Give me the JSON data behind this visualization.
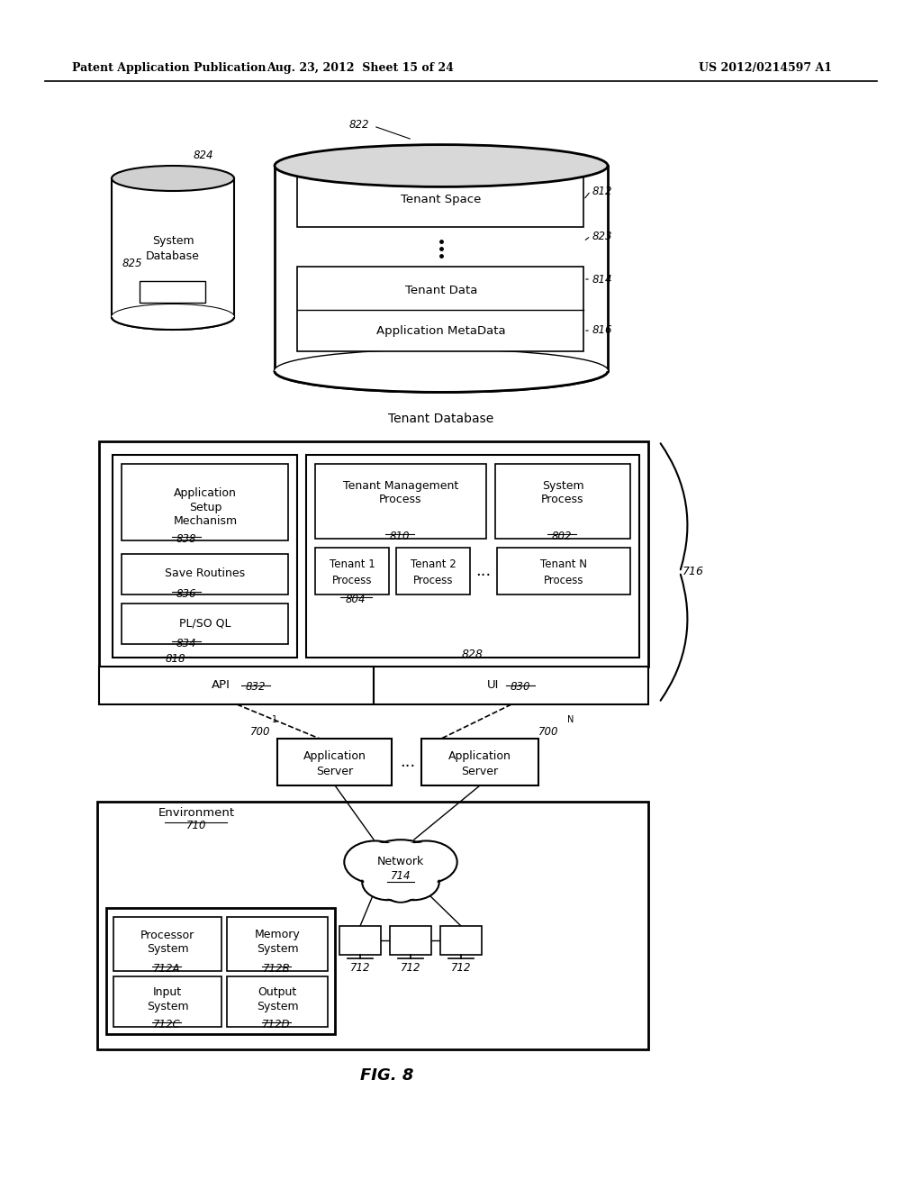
{
  "header_left": "Patent Application Publication",
  "header_mid": "Aug. 23, 2012  Sheet 15 of 24",
  "header_right": "US 2012/0214597 A1",
  "fig_label": "FIG. 8",
  "bg_color": "#ffffff",
  "line_color": "#000000",
  "text_color": "#000000"
}
